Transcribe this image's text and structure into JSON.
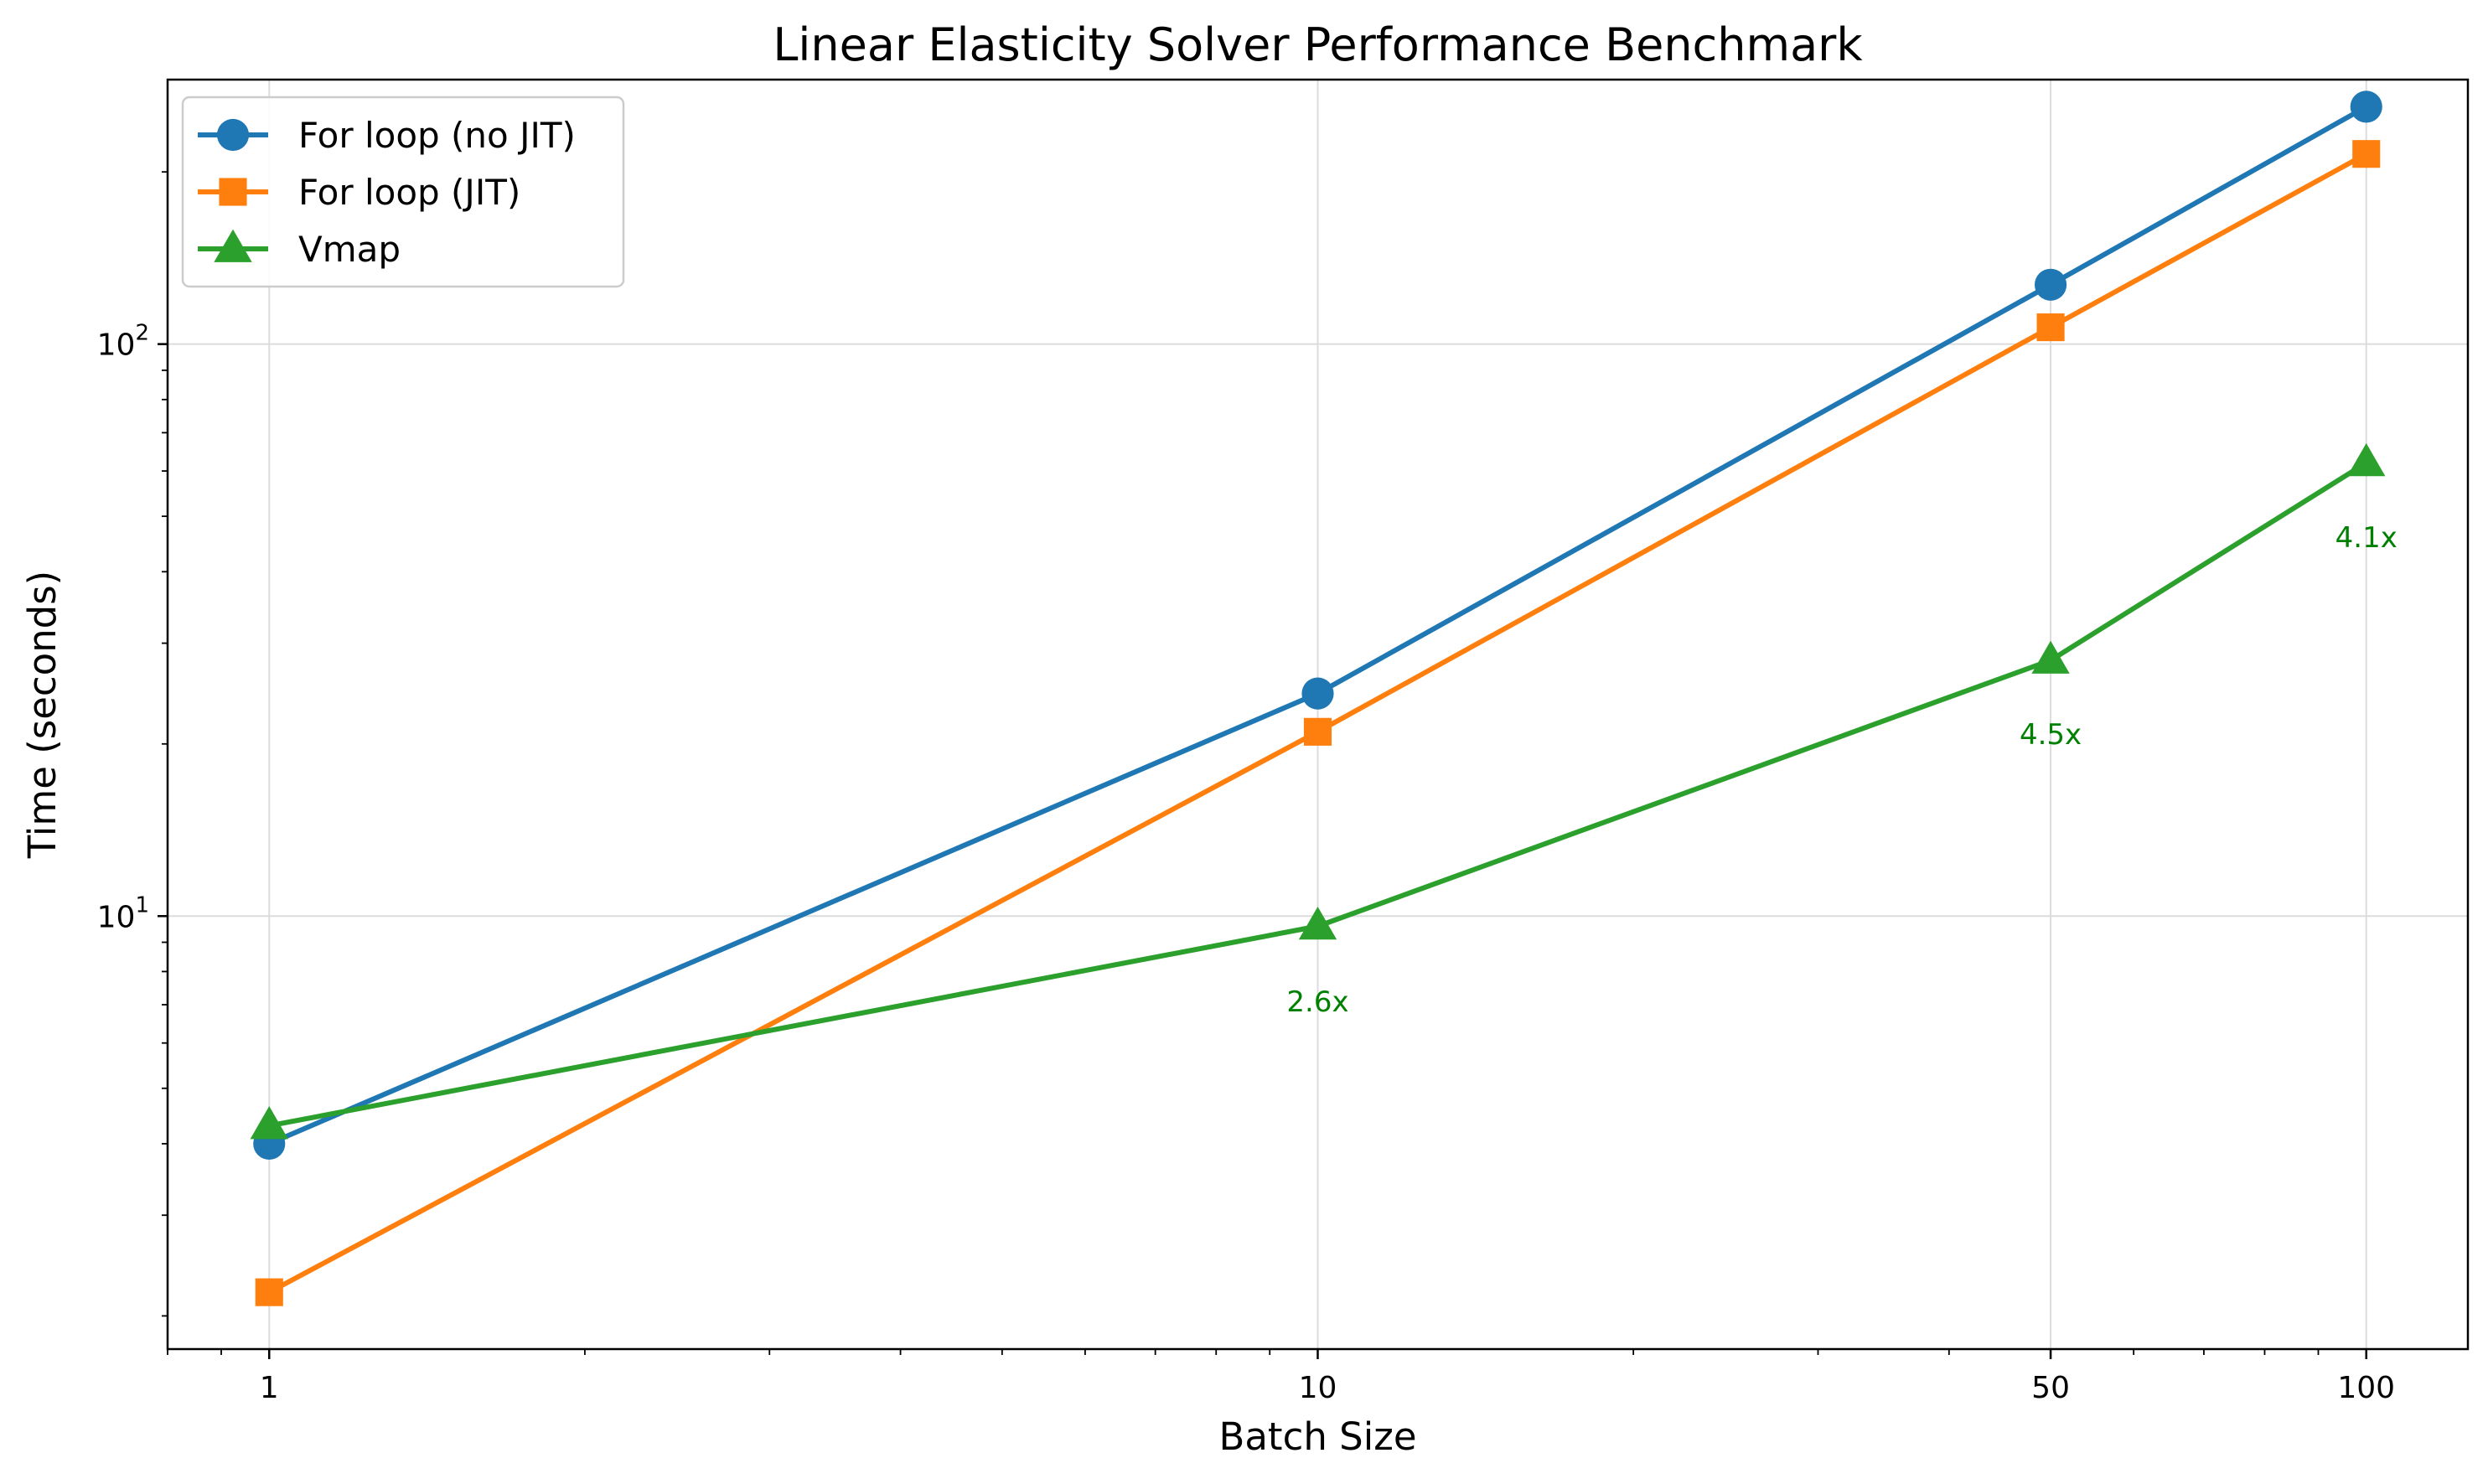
{
  "chart_data": {
    "type": "line",
    "title": "Linear Elasticity Solver Performance Benchmark",
    "xlabel": "Batch Size",
    "ylabel": "Time (seconds)",
    "xscale": "log",
    "yscale": "log",
    "xlim": [
      0.8,
      125
    ],
    "ylim": [
      1.75,
      290
    ],
    "x": [
      1,
      10,
      50,
      100
    ],
    "x_tick_labels": [
      "1",
      "10",
      "50",
      "100"
    ],
    "y_ticks": [
      {
        "base": "10",
        "exp": "1",
        "value": 10
      },
      {
        "base": "10",
        "exp": "2",
        "value": 100
      }
    ],
    "grid": true,
    "legend_position": "top-left",
    "series": [
      {
        "name": "For loop (no JIT)",
        "color": "#1f77b4",
        "marker": "circle",
        "values": [
          4.0,
          24.5,
          127,
          260
        ]
      },
      {
        "name": "For loop (JIT)",
        "color": "#ff7f0e",
        "marker": "square",
        "values": [
          2.2,
          21.0,
          107,
          215
        ]
      },
      {
        "name": "Vmap",
        "color": "#2ca02c",
        "marker": "triangle",
        "values": [
          4.3,
          9.6,
          28,
          62
        ]
      }
    ],
    "annotations": [
      {
        "text": "2.6x",
        "x": 10,
        "y": 7.1,
        "color": "#008000"
      },
      {
        "text": "4.5x",
        "x": 50,
        "y": 20.8,
        "color": "#008000"
      },
      {
        "text": "4.1x",
        "x": 100,
        "y": 46,
        "color": "#008000"
      }
    ]
  }
}
